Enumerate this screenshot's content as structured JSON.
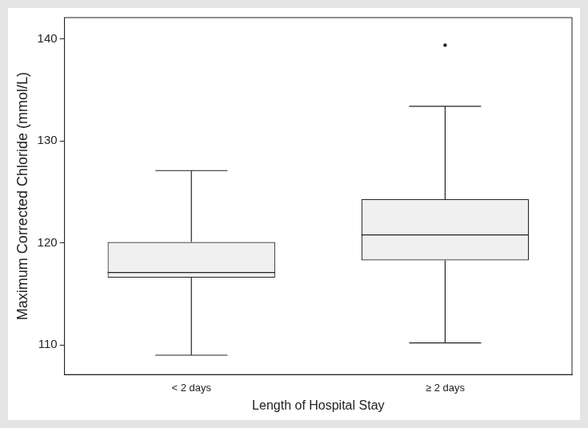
{
  "chart_data": {
    "type": "box",
    "x_label": "Length of Hospital Stay",
    "y_label": "Maximum Corrected Chloride (mmol/L)",
    "categories": [
      "< 2 days",
      "≥ 2 days"
    ],
    "boxes": [
      {
        "min": 109.0,
        "q1": 116.6,
        "median": 117.1,
        "q3": 120.1,
        "max": 127.1,
        "outliers": []
      },
      {
        "min": 110.2,
        "q1": 118.3,
        "median": 120.8,
        "q3": 124.3,
        "max": 133.4,
        "outliers": [
          139.4
        ]
      }
    ],
    "color": "#f0f0f0",
    "ylim": [
      107.1,
      142.1
    ],
    "yticks": [
      110,
      120,
      130,
      140
    ],
    "grid": false
  }
}
